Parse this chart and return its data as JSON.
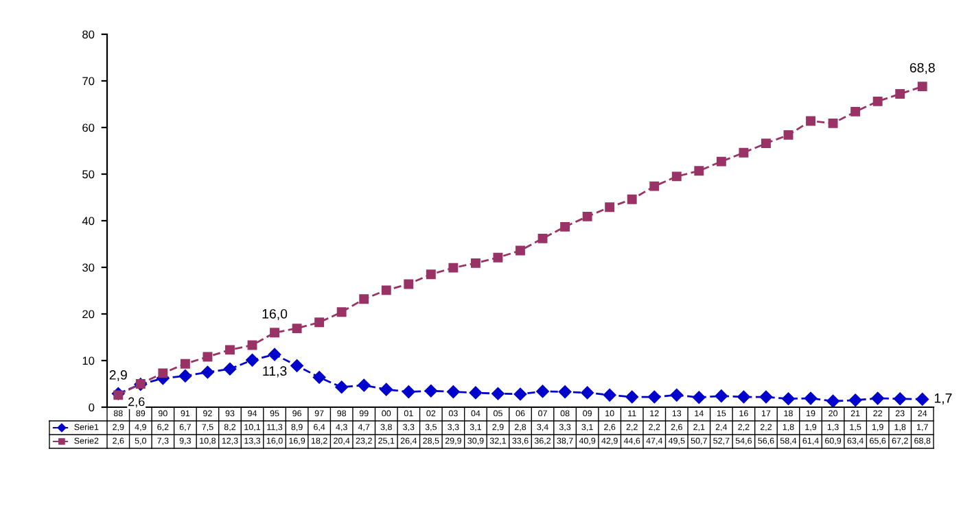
{
  "chart_data": {
    "type": "line",
    "categories": [
      "88",
      "89",
      "90",
      "91",
      "92",
      "93",
      "94",
      "95",
      "96",
      "97",
      "98",
      "99",
      "00",
      "01",
      "02",
      "03",
      "04",
      "05",
      "06",
      "07",
      "08",
      "09",
      "10",
      "11",
      "12",
      "13",
      "14",
      "15",
      "16",
      "17",
      "18",
      "19",
      "20",
      "21",
      "22",
      "23",
      "24"
    ],
    "series": [
      {
        "name": "Serie1",
        "color": "#0000cc",
        "marker": "diamond",
        "line_style": "dashed",
        "values": [
          2.9,
          4.9,
          6.2,
          6.7,
          7.5,
          8.2,
          10.1,
          11.3,
          8.9,
          6.4,
          4.3,
          4.7,
          3.8,
          3.3,
          3.5,
          3.3,
          3.1,
          2.9,
          2.8,
          3.4,
          3.3,
          3.1,
          2.6,
          2.2,
          2.2,
          2.6,
          2.1,
          2.4,
          2.2,
          2.2,
          1.8,
          1.9,
          1.3,
          1.5,
          1.9,
          1.8,
          1.7
        ],
        "value_labels": [
          "2,9",
          "4,9",
          "6,2",
          "6,7",
          "7,5",
          "8,2",
          "10,1",
          "11,3",
          "8,9",
          "6,4",
          "4,3",
          "4,7",
          "3,8",
          "3,3",
          "3,5",
          "3,3",
          "3,1",
          "2,9",
          "2,8",
          "3,4",
          "3,3",
          "3,1",
          "2,6",
          "2,2",
          "2,2",
          "2,6",
          "2,1",
          "2,4",
          "2,2",
          "2,2",
          "1,8",
          "1,9",
          "1,3",
          "1,5",
          "1,9",
          "1,8",
          "1,7"
        ]
      },
      {
        "name": "Serie2",
        "color": "#993366",
        "marker": "square",
        "line_style": "dashed",
        "values": [
          2.6,
          5.0,
          7.3,
          9.3,
          10.8,
          12.3,
          13.3,
          16.0,
          16.9,
          18.2,
          20.4,
          23.2,
          25.1,
          26.4,
          28.5,
          29.9,
          30.9,
          32.1,
          33.6,
          36.2,
          38.7,
          40.9,
          42.9,
          44.6,
          47.4,
          49.5,
          50.7,
          52.7,
          54.6,
          56.6,
          58.4,
          61.4,
          60.9,
          63.4,
          65.6,
          67.2,
          68.8
        ],
        "value_labels": [
          "2,6",
          "5,0",
          "7,3",
          "9,3",
          "10,8",
          "12,3",
          "13,3",
          "16,0",
          "16,9",
          "18,2",
          "20,4",
          "23,2",
          "25,1",
          "26,4",
          "28,5",
          "29,9",
          "30,9",
          "32,1",
          "33,6",
          "36,2",
          "38,7",
          "40,9",
          "42,9",
          "44,6",
          "47,4",
          "49,5",
          "50,7",
          "52,7",
          "54,6",
          "56,6",
          "58,4",
          "61,4",
          "60,9",
          "63,4",
          "65,6",
          "67,2",
          "68,8"
        ]
      }
    ],
    "ylim": [
      0,
      80
    ],
    "yticks": [
      0,
      10,
      20,
      30,
      40,
      50,
      60,
      70,
      80
    ],
    "grid": false,
    "legend": "bottom",
    "annotations": [
      {
        "text": "2,9",
        "x": "88",
        "y": 2.9
      },
      {
        "text": "2,6",
        "x": "88",
        "y": 2.6
      },
      {
        "text": "11,3",
        "x": "95",
        "y": 11.3
      },
      {
        "text": "16,0",
        "x": "95",
        "y": 16.0
      },
      {
        "text": "1,7",
        "x": "24",
        "y": 1.7
      },
      {
        "text": "68,8",
        "x": "24",
        "y": 68.8
      }
    ]
  }
}
